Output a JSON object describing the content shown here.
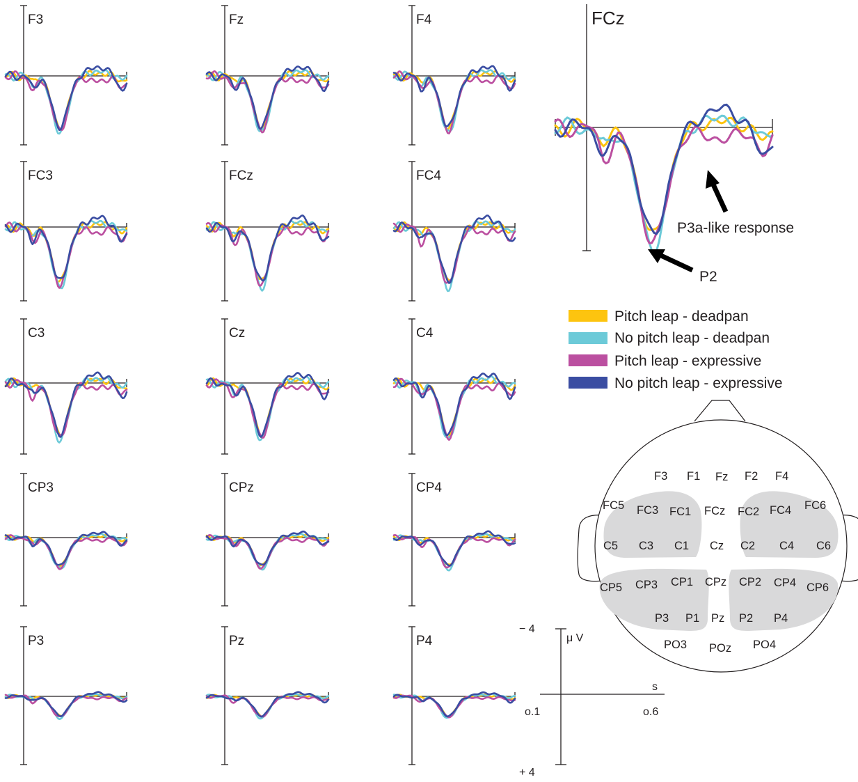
{
  "colors": {
    "pitch_leap_deadpan": "#fdc40f",
    "no_pitch_leap_deadpan": "#6ccad8",
    "pitch_leap_expressive": "#bb4fa0",
    "no_pitch_leap_expressive": "#3a4da2",
    "axis": "#231f20",
    "scalp_shade": "#d9d9da"
  },
  "chart_data": [
    {
      "type": "line",
      "kind": "erp-grid",
      "panels": [
        "F3",
        "Fz",
        "F4",
        "FC3",
        "FCz",
        "FC4",
        "C3",
        "Cz",
        "C4",
        "CP3",
        "CPz",
        "CP4",
        "P3",
        "Pz",
        "P4"
      ],
      "series": [
        "Pitch leap - deadpan",
        "No pitch leap - deadpan",
        "Pitch leap - expressive",
        "No pitch leap - expressive"
      ],
      "x_range_s": [
        -0.1,
        0.6
      ],
      "y_range_uV": [
        -4,
        4
      ],
      "y_orientation": "negative up"
    },
    {
      "type": "line",
      "kind": "erp-enlarged",
      "panel": "FCz",
      "series": [
        "Pitch leap - deadpan",
        "No pitch leap - deadpan",
        "Pitch leap - expressive",
        "No pitch leap - expressive"
      ],
      "annotations": [
        "P2",
        "P3a-like response"
      ]
    }
  ],
  "panels": [
    {
      "label": "F3"
    },
    {
      "label": "Fz"
    },
    {
      "label": "F4"
    },
    {
      "label": "FC3"
    },
    {
      "label": "FCz"
    },
    {
      "label": "FC4"
    },
    {
      "label": "C3"
    },
    {
      "label": "Cz"
    },
    {
      "label": "C4"
    },
    {
      "label": "CP3"
    },
    {
      "label": "CPz"
    },
    {
      "label": "CP4"
    },
    {
      "label": "P3"
    },
    {
      "label": "Pz"
    },
    {
      "label": "P4"
    }
  ],
  "big_panel": {
    "label": "FCz",
    "annotation_p2": "P2",
    "annotation_p3a": "P3a-like response"
  },
  "legend": [
    {
      "label": "Pitch leap - deadpan",
      "color_key": "pitch_leap_deadpan"
    },
    {
      "label": "No pitch leap - deadpan",
      "color_key": "no_pitch_leap_deadpan"
    },
    {
      "label": "Pitch leap - expressive",
      "color_key": "pitch_leap_expressive"
    },
    {
      "label": "No pitch leap - expressive",
      "color_key": "no_pitch_leap_expressive"
    }
  ],
  "scale": {
    "y_top": "− 4",
    "y_bottom": "+ 4",
    "y_unit": "μ V",
    "x_unit": "s",
    "x_left": "o.1",
    "x_right": "o.6"
  },
  "scalp": {
    "electrodes": [
      {
        "label": "F3"
      },
      {
        "label": "F1"
      },
      {
        "label": "Fz"
      },
      {
        "label": "F2"
      },
      {
        "label": "F4"
      },
      {
        "label": "FC5"
      },
      {
        "label": "FC3"
      },
      {
        "label": "FC1"
      },
      {
        "label": "FCz"
      },
      {
        "label": "FC2"
      },
      {
        "label": "FC4"
      },
      {
        "label": "FC6"
      },
      {
        "label": "C5"
      },
      {
        "label": "C3"
      },
      {
        "label": "C1"
      },
      {
        "label": "Cz"
      },
      {
        "label": "C2"
      },
      {
        "label": "C4"
      },
      {
        "label": "C6"
      },
      {
        "label": "CP5"
      },
      {
        "label": "CP3"
      },
      {
        "label": "CP1"
      },
      {
        "label": "CPz"
      },
      {
        "label": "CP2"
      },
      {
        "label": "CP4"
      },
      {
        "label": "CP6"
      },
      {
        "label": "P3"
      },
      {
        "label": "P1"
      },
      {
        "label": "Pz"
      },
      {
        "label": "P2"
      },
      {
        "label": "P4"
      },
      {
        "label": "PO3"
      },
      {
        "label": "POz"
      },
      {
        "label": "PO4"
      }
    ]
  }
}
